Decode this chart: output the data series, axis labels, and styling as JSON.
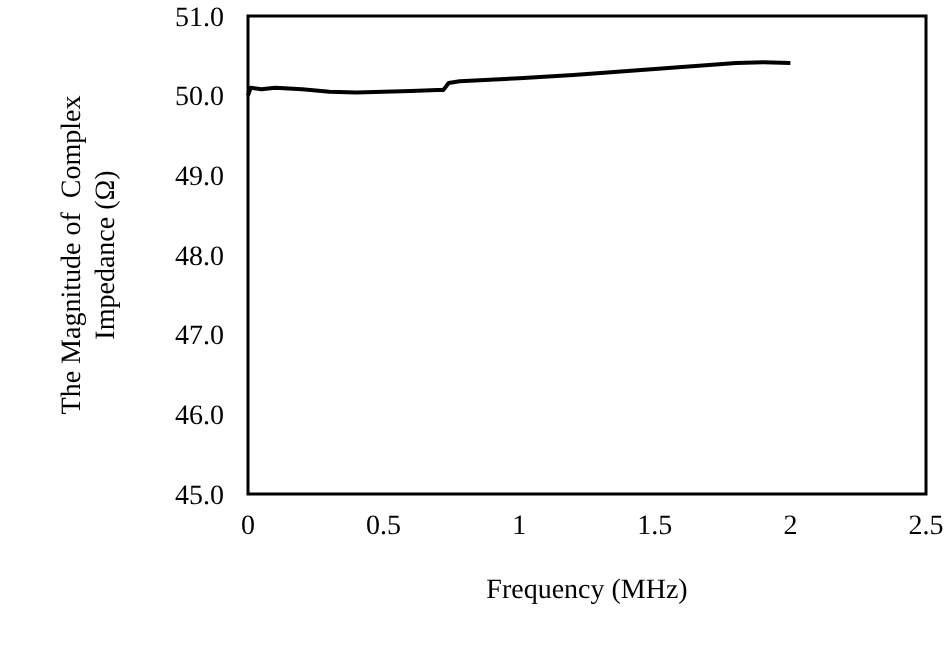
{
  "chart_data": {
    "type": "line",
    "xlabel": "Frequency (MHz)",
    "ylabel": "The Magnitude of  Complex\nImpedance (Ω)",
    "xlim": [
      0,
      2.5
    ],
    "ylim": [
      45,
      51
    ],
    "xticks": [
      0,
      0.5,
      1,
      1.5,
      2,
      2.5
    ],
    "yticks": [
      {
        "value": 45,
        "label": "45.0"
      },
      {
        "value": 46,
        "label": "46.0"
      },
      {
        "value": 47,
        "label": "47.0"
      },
      {
        "value": 48,
        "label": "48.0"
      },
      {
        "value": 49,
        "label": "49.0"
      },
      {
        "value": 50,
        "label": "50.0"
      },
      {
        "value": 51,
        "label": "51.0"
      }
    ],
    "grid": false,
    "marker": "none",
    "line_style": "solid",
    "series": [
      {
        "color": "#000000",
        "x": [
          0,
          0.01,
          0.05,
          0.1,
          0.15,
          0.2,
          0.3,
          0.4,
          0.5,
          0.6,
          0.7,
          0.72,
          0.74,
          0.78,
          1.0,
          1.2,
          1.4,
          1.6,
          1.8,
          1.9,
          2.0
        ],
        "values": [
          50.0,
          50.1,
          50.08,
          50.1,
          50.09,
          50.08,
          50.05,
          50.04,
          50.05,
          50.06,
          50.07,
          50.07,
          50.16,
          50.18,
          50.22,
          50.26,
          50.31,
          50.36,
          50.41,
          50.42,
          50.41
        ]
      }
    ]
  }
}
